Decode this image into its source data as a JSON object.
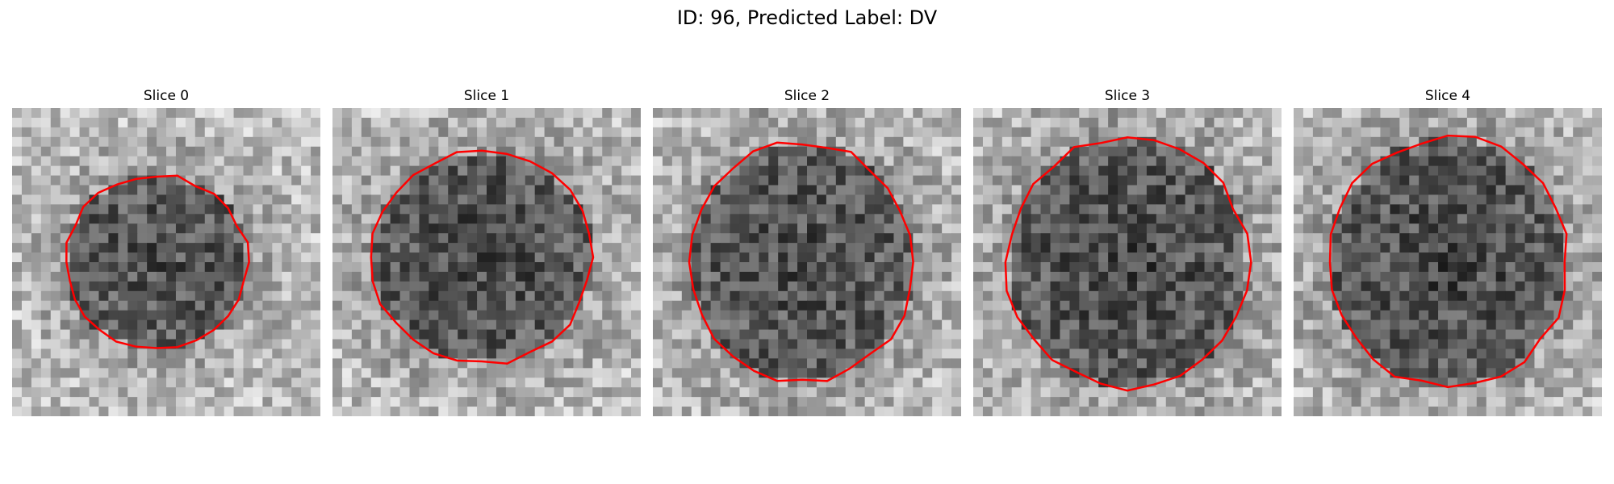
{
  "figure": {
    "title": "ID: 96, Predicted Label: DV"
  },
  "slices": [
    {
      "label": "Slice 0",
      "contour_color": "#ff0000"
    },
    {
      "label": "Slice 1",
      "contour_color": "#ff0000"
    },
    {
      "label": "Slice 2",
      "contour_color": "#ff0000"
    },
    {
      "label": "Slice 3",
      "contour_color": "#ff0000"
    },
    {
      "label": "Slice 4",
      "contour_color": "#ff0000"
    }
  ],
  "style": {
    "colormap": "grayscale",
    "axes": "off"
  }
}
